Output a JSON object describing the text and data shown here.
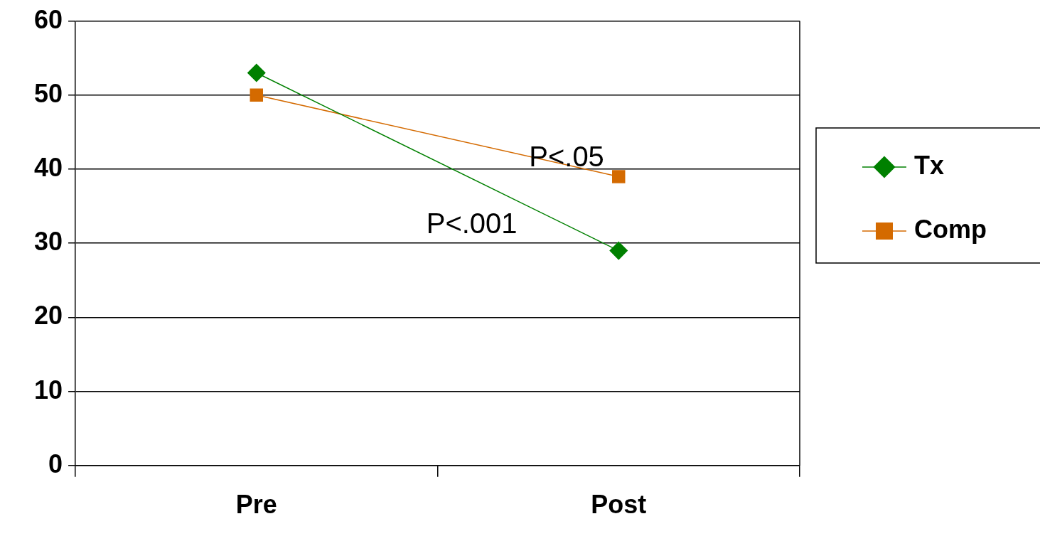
{
  "chart_data": {
    "type": "line",
    "categories": [
      "Pre",
      "Post"
    ],
    "series": [
      {
        "name": "Tx",
        "color": "#008000",
        "values": [
          53,
          29
        ],
        "marker": "diamond"
      },
      {
        "name": "Comp",
        "color": "#d46a00",
        "values": [
          50,
          39
        ],
        "marker": "square"
      }
    ],
    "ylim": [
      0,
      60
    ],
    "yticks": [
      0,
      10,
      20,
      30,
      40,
      50,
      60
    ],
    "grid": "y",
    "legend": "right",
    "annotations": [
      "P<.05",
      "P<.001"
    ]
  }
}
